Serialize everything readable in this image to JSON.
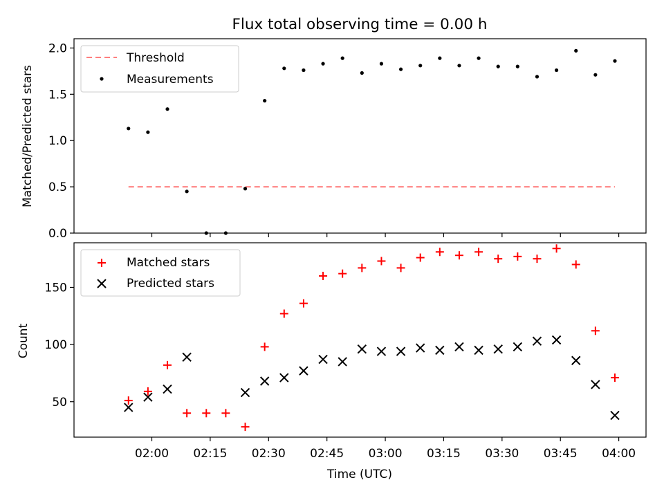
{
  "chart_data": [
    {
      "type": "scatter",
      "title": "Flux total observing time = 0.00 h",
      "xlabel": "",
      "ylabel": "Matched/Predicted stars",
      "xlim": [
        "01:40",
        "04:07"
      ],
      "ylim": [
        0,
        2.1
      ],
      "yticks": [
        0.0,
        0.5,
        1.0,
        1.5,
        2.0
      ],
      "ytick_labels": [
        "0.0",
        "0.5",
        "1.0",
        "1.5",
        "2.0"
      ],
      "legend_position": "top-left",
      "grid": false,
      "threshold": {
        "name": "Threshold",
        "value": 0.5,
        "x_start": "01:54",
        "x_end": "03:59",
        "color": "#ff7f7f"
      },
      "series": [
        {
          "name": "Measurements",
          "marker": "dot",
          "color": "#000000",
          "x": [
            "01:54",
            "01:59",
            "02:04",
            "02:09",
            "02:14",
            "02:19",
            "02:24",
            "02:29",
            "02:34",
            "02:39",
            "02:44",
            "02:49",
            "02:54",
            "02:59",
            "03:04",
            "03:09",
            "03:14",
            "03:19",
            "03:24",
            "03:29",
            "03:34",
            "03:39",
            "03:44",
            "03:49",
            "03:54",
            "03:59"
          ],
          "y": [
            1.13,
            1.09,
            1.34,
            0.45,
            0.0,
            0.0,
            0.48,
            1.43,
            1.78,
            1.76,
            1.83,
            1.89,
            1.73,
            1.83,
            1.77,
            1.81,
            1.89,
            1.81,
            1.89,
            1.8,
            1.8,
            1.69,
            1.76,
            1.97,
            1.71,
            1.86
          ]
        }
      ]
    },
    {
      "type": "scatter",
      "title": "",
      "xlabel": "Time (UTC)",
      "ylabel": "Count",
      "xlim": [
        "01:40",
        "04:07"
      ],
      "xticks": [
        "02:00",
        "02:15",
        "02:30",
        "02:45",
        "03:00",
        "03:15",
        "03:30",
        "03:45",
        "04:00"
      ],
      "ylim": [
        19,
        189
      ],
      "yticks": [
        50,
        100,
        150
      ],
      "ytick_labels": [
        "50",
        "100",
        "150"
      ],
      "legend_position": "top-left",
      "grid": false,
      "series": [
        {
          "name": "Matched stars",
          "marker": "plus",
          "color": "#ff0000",
          "x": [
            "01:54",
            "01:59",
            "02:04",
            "02:09",
            "02:14",
            "02:19",
            "02:24",
            "02:29",
            "02:34",
            "02:39",
            "02:44",
            "02:49",
            "02:54",
            "02:59",
            "03:04",
            "03:09",
            "03:14",
            "03:19",
            "03:24",
            "03:29",
            "03:34",
            "03:39",
            "03:44",
            "03:49",
            "03:54",
            "03:59"
          ],
          "y": [
            51,
            59,
            82,
            40,
            40,
            40,
            28,
            98,
            127,
            136,
            160,
            162,
            167,
            173,
            167,
            176,
            181,
            178,
            181,
            175,
            177,
            175,
            184,
            170,
            112,
            71
          ]
        },
        {
          "name": "Predicted stars",
          "marker": "x",
          "color": "#000000",
          "x": [
            "01:54",
            "01:59",
            "02:04",
            "02:09",
            "02:14",
            "02:19",
            "02:24",
            "02:29",
            "02:34",
            "02:39",
            "02:44",
            "02:49",
            "02:54",
            "02:59",
            "03:04",
            "03:09",
            "03:14",
            "03:19",
            "03:24",
            "03:29",
            "03:34",
            "03:39",
            "03:44",
            "03:49",
            "03:54",
            "03:59"
          ],
          "y": [
            45,
            54,
            61,
            89,
            null,
            null,
            58,
            68,
            71,
            77,
            87,
            85,
            96,
            94,
            94,
            97,
            95,
            98,
            95,
            96,
            98,
            103,
            104,
            86,
            65,
            38
          ]
        }
      ]
    }
  ]
}
